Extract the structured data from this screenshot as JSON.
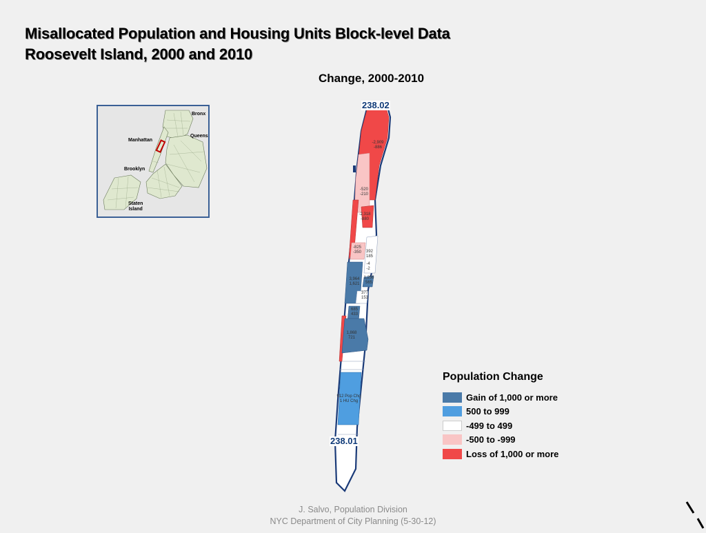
{
  "title": {
    "line1": "Misallocated Population and Housing Units Block-level Data",
    "line2": "Roosevelt Island, 2000 and 2010"
  },
  "subtitle": "Change, 2000-2010",
  "inset_map": {
    "labels": {
      "bronx": "Bronx",
      "queens": "Queens",
      "manhattan": "Manhattan",
      "brooklyn": "Brooklyn",
      "staten_island_1": "Staten",
      "staten_island_2": "Island"
    },
    "border_color": "#3a5f95",
    "highlight_color": "#c00000"
  },
  "tracts": {
    "north": "238.02",
    "south": "238.01"
  },
  "blocks": [
    {
      "pop": "-2,909",
      "hu": "-886"
    },
    {
      "pop": "-520",
      "hu": "-210"
    },
    {
      "pop": "-2,318",
      "hu": "-880"
    },
    {
      "pop": "-825",
      "hu": "-350"
    },
    {
      "pop": "392",
      "hu": "185"
    },
    {
      "pop": "-4",
      "hu": "-2"
    },
    {
      "pop": "3,964",
      "hu": "1,621"
    },
    {
      "pop": "1,256",
      "hu": "565"
    },
    {
      "pop": "377",
      "hu": "153"
    },
    {
      "pop": "685",
      "hu": "433"
    },
    {
      "pop": "1,868",
      "hu": "721"
    },
    {
      "pop": "912 Pop Chg",
      "hu": "1 HU Chg"
    }
  ],
  "legend": {
    "title": "Population Change",
    "items": [
      {
        "label": "Gain of 1,000 or more",
        "color": "#4a7aa8"
      },
      {
        "label": "500 to 999",
        "color": "#4f9ee0"
      },
      {
        "label": "-499 to 499",
        "color": "#ffffff"
      },
      {
        "label": "-500 to -999",
        "color": "#f9c5c5"
      },
      {
        "label": "Loss of 1,000 or more",
        "color": "#f04848"
      }
    ]
  },
  "footer": {
    "line1": "J. Salvo, Population Division",
    "line2": "NYC Department of City Planning (5-30-12)"
  },
  "colors": {
    "outline": "#1a3a78",
    "gain_large": "#4a7aa8",
    "gain_small": "#4f9ee0",
    "neutral": "#ffffff",
    "loss_small": "#f9c5c5",
    "loss_large": "#f04848"
  }
}
